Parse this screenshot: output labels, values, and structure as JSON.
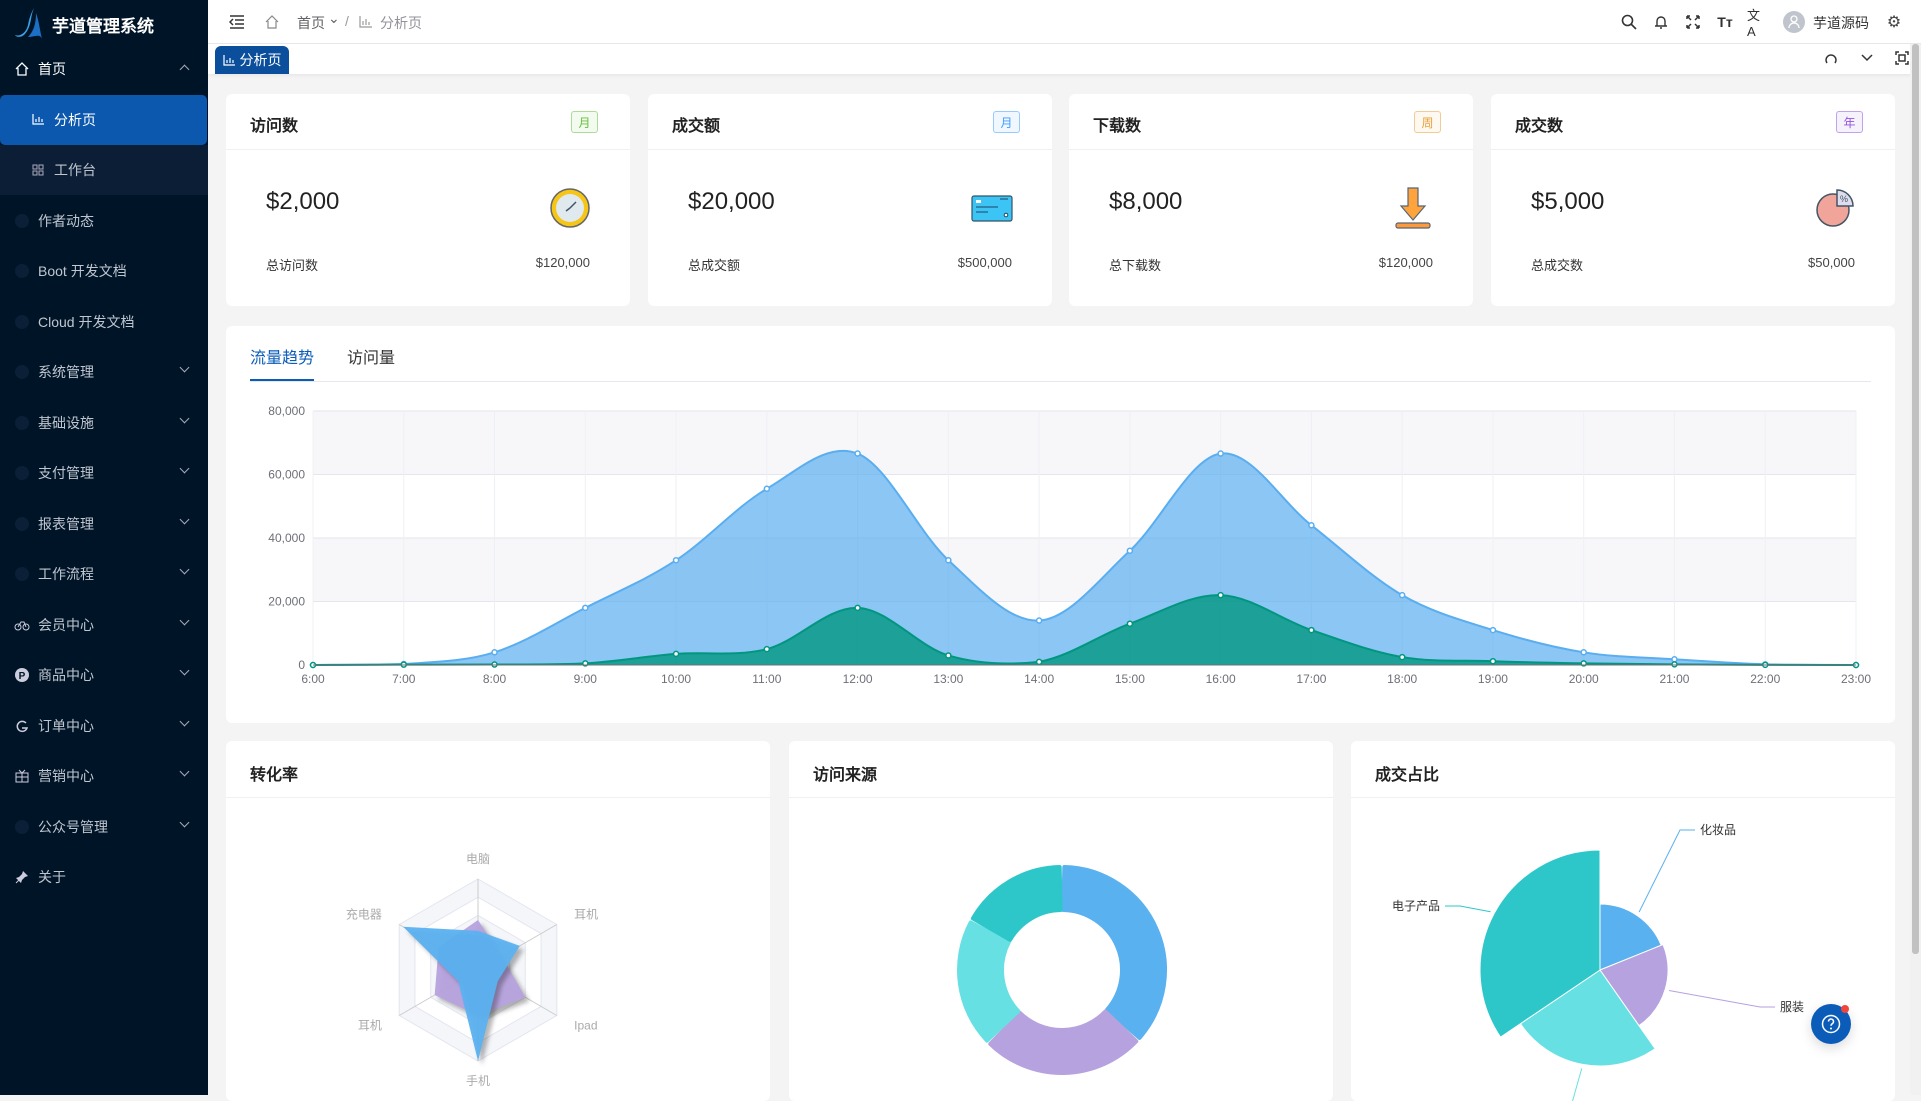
{
  "app": {
    "title": "芋道管理系统"
  },
  "sidebar": {
    "items": [
      {
        "label": "首页",
        "icon": "home-icon",
        "type": "parent-open"
      },
      {
        "label": "分析页",
        "icon": "bar-chart-icon",
        "type": "active"
      },
      {
        "label": "工作台",
        "icon": "grid-icon",
        "type": "sub"
      },
      {
        "label": "作者动态",
        "icon": "dot-icon",
        "type": "leaf"
      },
      {
        "label": "Boot 开发文档",
        "icon": "dot-icon",
        "type": "leaf"
      },
      {
        "label": "Cloud 开发文档",
        "icon": "dot-icon",
        "type": "leaf"
      },
      {
        "label": "系统管理",
        "icon": "dot-icon",
        "type": "parent"
      },
      {
        "label": "基础设施",
        "icon": "dot-icon",
        "type": "parent"
      },
      {
        "label": "支付管理",
        "icon": "dot-icon",
        "type": "parent"
      },
      {
        "label": "报表管理",
        "icon": "dot-icon",
        "type": "parent"
      },
      {
        "label": "工作流程",
        "icon": "dot-icon",
        "type": "parent"
      },
      {
        "label": "会员中心",
        "icon": "bicycle-icon",
        "type": "parent"
      },
      {
        "label": "商品中心",
        "icon": "parking-icon",
        "type": "parent"
      },
      {
        "label": "订单中心",
        "icon": "order-icon",
        "type": "parent"
      },
      {
        "label": "营销中心",
        "icon": "gift-icon",
        "type": "parent"
      },
      {
        "label": "公众号管理",
        "icon": "dot-icon",
        "type": "parent"
      },
      {
        "label": "关于",
        "icon": "pin-icon",
        "type": "leaf"
      }
    ]
  },
  "header": {
    "breadcrumb": [
      "首页",
      "/",
      "分析页"
    ],
    "user": "芋道源码"
  },
  "tabs": {
    "active": "分析页"
  },
  "stats": [
    {
      "title": "访问数",
      "badge": "月",
      "badge_color": "#67c23a",
      "value": "$2,000",
      "label": "总访问数",
      "total": "$120,000",
      "icon": "clock-icon"
    },
    {
      "title": "成交额",
      "badge": "月",
      "badge_color": "#409eff",
      "value": "$20,000",
      "label": "总成交额",
      "total": "$500,000",
      "icon": "credit-card-icon"
    },
    {
      "title": "下载数",
      "badge": "周",
      "badge_color": "#e6a23c",
      "value": "$8,000",
      "label": "总下载数",
      "total": "$120,000",
      "icon": "download-icon"
    },
    {
      "title": "成交数",
      "badge": "年",
      "badge_color": "#9254de",
      "value": "$5,000",
      "label": "总成交数",
      "total": "$50,000",
      "icon": "pie-percent-icon"
    }
  ],
  "trend": {
    "tabs": [
      "流量趋势",
      "访问量"
    ],
    "active_tab": 0
  },
  "bottom": {
    "titles": [
      "转化率",
      "访问来源",
      "成交占比"
    ]
  },
  "chart_data": [
    {
      "type": "area",
      "x": [
        "6:00",
        "7:00",
        "8:00",
        "9:00",
        "10:00",
        "11:00",
        "12:00",
        "13:00",
        "14:00",
        "15:00",
        "16:00",
        "17:00",
        "18:00",
        "19:00",
        "20:00",
        "21:00",
        "22:00",
        "23:00"
      ],
      "ylim": [
        0,
        80000
      ],
      "yticks": [
        "0",
        "20,000",
        "40,000",
        "60,000",
        "80,000"
      ],
      "grid": true,
      "series": [
        {
          "color": "#5aaef0",
          "values": [
            0,
            300,
            4000,
            18000,
            33000,
            55500,
            66600,
            33000,
            14000,
            36000,
            66600,
            44000,
            22000,
            11000,
            4000,
            1800,
            200,
            0
          ]
        },
        {
          "color": "#019680",
          "values": [
            0,
            100,
            150,
            500,
            3500,
            5000,
            18000,
            3000,
            1000,
            13000,
            22000,
            11000,
            2500,
            1200,
            500,
            200,
            50,
            0
          ]
        }
      ]
    },
    {
      "type": "radar",
      "indicators": [
        "电脑",
        "耳机",
        "Ipad",
        "手机",
        "耳机",
        "充电器"
      ],
      "max": 100,
      "series": [
        {
          "color": "#b6a2de",
          "values": [
            55,
            30,
            60,
            50,
            55,
            50
          ]
        },
        {
          "color": "#5ab1ef",
          "values": [
            43,
            53,
            25,
            100,
            25,
            95
          ]
        }
      ]
    },
    {
      "type": "pie",
      "donut": true,
      "values": [
        1048,
        735,
        580,
        484
      ],
      "colors": [
        "#5ab1ef",
        "#b6a2de",
        "#67e0e3",
        "#2ec7c9"
      ]
    },
    {
      "type": "pie",
      "rose": true,
      "categories": [
        "化妆品",
        "服装",
        "",
        "电子产品"
      ],
      "values": [
        68,
        77,
        91,
        124
      ],
      "colors": [
        "#5ab1ef",
        "#b6a2de",
        "#67e0e3",
        "#2ec7c9"
      ]
    }
  ]
}
